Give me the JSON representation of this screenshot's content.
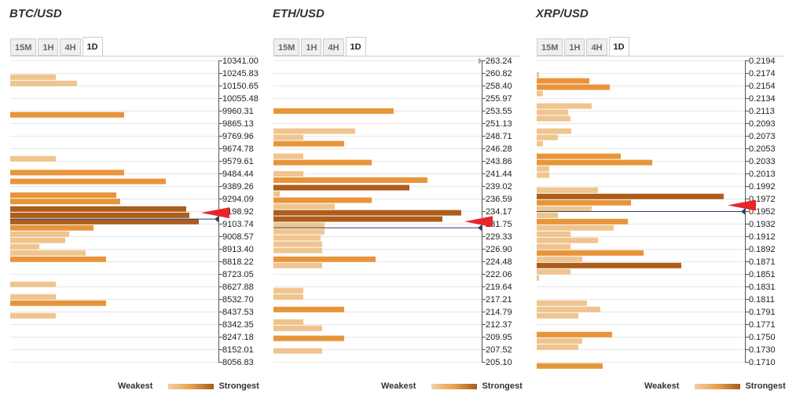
{
  "colors": {
    "light": "#f0c48e",
    "mid": "#e8953a",
    "dark": "#ad5d1b",
    "arrow": "#e8262a",
    "line": "#2c3e6b",
    "tri": "#a8a8c0"
  },
  "legend": {
    "weak": "Weakest",
    "strong": "Strongest"
  },
  "panels": [
    {
      "title": "BTC/USD",
      "tabs": [
        "15M",
        "1H",
        "4H",
        "1D"
      ],
      "active_tab": "1D",
      "chart_data": {
        "type": "bar",
        "orientation": "horizontal",
        "y_ticks": [
          "10341.00",
          "10245.83",
          "10150.65",
          "10055.48",
          "9960.31",
          "9865.13",
          "9769.96",
          "9674.78",
          "9579.61",
          "9484.44",
          "9389.26",
          "9294.09",
          "9198.92",
          "9103.74",
          "9008.57",
          "8913.40",
          "8818.22",
          "8723.05",
          "8627.88",
          "8532.70",
          "8437.53",
          "8342.35",
          "8247.18",
          "8152.01",
          "8056.83"
        ],
        "current_price_level": 12.6,
        "bars": [
          {
            "level": 1.3,
            "value": 58,
            "strength": "light"
          },
          {
            "level": 1.8,
            "value": 85,
            "strength": "light"
          },
          {
            "level": 4.3,
            "value": 145,
            "strength": "mid"
          },
          {
            "level": 7.8,
            "value": 58,
            "strength": "light"
          },
          {
            "level": 8.9,
            "value": 145,
            "strength": "mid"
          },
          {
            "level": 9.6,
            "value": 198,
            "strength": "mid"
          },
          {
            "level": 10.7,
            "value": 135,
            "strength": "mid"
          },
          {
            "level": 11.2,
            "value": 140,
            "strength": "mid"
          },
          {
            "level": 11.8,
            "value": 224,
            "strength": "dark"
          },
          {
            "level": 12.3,
            "value": 228,
            "strength": "dark"
          },
          {
            "level": 12.8,
            "value": 240,
            "strength": "dark"
          },
          {
            "level": 13.3,
            "value": 106,
            "strength": "mid"
          },
          {
            "level": 13.8,
            "value": 75,
            "strength": "light"
          },
          {
            "level": 14.3,
            "value": 70,
            "strength": "light"
          },
          {
            "level": 14.8,
            "value": 37,
            "strength": "light"
          },
          {
            "level": 15.3,
            "value": 96,
            "strength": "light"
          },
          {
            "level": 15.8,
            "value": 122,
            "strength": "mid"
          },
          {
            "level": 17.8,
            "value": 58,
            "strength": "light"
          },
          {
            "level": 18.8,
            "value": 58,
            "strength": "light"
          },
          {
            "level": 19.3,
            "value": 122,
            "strength": "mid"
          },
          {
            "level": 20.3,
            "value": 58,
            "strength": "light"
          }
        ]
      }
    },
    {
      "title": "ETH/USD",
      "tabs": [
        "15M",
        "1H",
        "4H",
        "1D"
      ],
      "active_tab": "1D",
      "chart_data": {
        "type": "bar",
        "orientation": "horizontal",
        "y_ticks": [
          "263.24",
          "260.82",
          "258.40",
          "255.97",
          "253.55",
          "251.13",
          "248.71",
          "246.28",
          "243.86",
          "241.44",
          "239.02",
          "236.59",
          "234.17",
          "231.75",
          "229.33",
          "226.90",
          "224.48",
          "222.06",
          "219.64",
          "217.21",
          "214.79",
          "212.37",
          "209.95",
          "207.52",
          "205.10"
        ],
        "current_price_level": 13.3,
        "top_marker": true,
        "bars": [
          {
            "level": 4.0,
            "value": 153,
            "strength": "mid"
          },
          {
            "level": 5.6,
            "value": 104,
            "strength": "light"
          },
          {
            "level": 6.1,
            "value": 38,
            "strength": "light"
          },
          {
            "level": 6.6,
            "value": 90,
            "strength": "mid"
          },
          {
            "level": 7.6,
            "value": 38,
            "strength": "light"
          },
          {
            "level": 8.1,
            "value": 125,
            "strength": "mid"
          },
          {
            "level": 9.0,
            "value": 38,
            "strength": "light"
          },
          {
            "level": 9.5,
            "value": 196,
            "strength": "mid"
          },
          {
            "level": 10.1,
            "value": 173,
            "strength": "dark"
          },
          {
            "level": 10.6,
            "value": 8,
            "strength": "light"
          },
          {
            "level": 11.1,
            "value": 125,
            "strength": "mid"
          },
          {
            "level": 11.6,
            "value": 78,
            "strength": "light"
          },
          {
            "level": 12.1,
            "value": 239,
            "strength": "dark"
          },
          {
            "level": 12.6,
            "value": 215,
            "strength": "dark"
          },
          {
            "level": 13.1,
            "value": 65,
            "strength": "light"
          },
          {
            "level": 13.6,
            "value": 65,
            "strength": "light"
          },
          {
            "level": 14.1,
            "value": 60,
            "strength": "light"
          },
          {
            "level": 14.6,
            "value": 62,
            "strength": "light"
          },
          {
            "level": 15.1,
            "value": 62,
            "strength": "light"
          },
          {
            "level": 15.8,
            "value": 130,
            "strength": "mid"
          },
          {
            "level": 16.3,
            "value": 62,
            "strength": "light"
          },
          {
            "level": 18.3,
            "value": 38,
            "strength": "light"
          },
          {
            "level": 18.8,
            "value": 38,
            "strength": "light"
          },
          {
            "level": 19.8,
            "value": 90,
            "strength": "mid"
          },
          {
            "level": 20.8,
            "value": 38,
            "strength": "light"
          },
          {
            "level": 21.3,
            "value": 62,
            "strength": "light"
          },
          {
            "level": 22.1,
            "value": 90,
            "strength": "mid"
          },
          {
            "level": 23.1,
            "value": 62,
            "strength": "light"
          }
        ]
      }
    },
    {
      "title": "XRP/USD",
      "tabs": [
        "15M",
        "1H",
        "4H",
        "1D"
      ],
      "active_tab": "1D",
      "chart_data": {
        "type": "bar",
        "orientation": "horizontal",
        "y_ticks": [
          "0.2194",
          "0.2174",
          "0.2154",
          "0.2134",
          "0.2113",
          "0.2093",
          "0.2073",
          "0.2053",
          "0.2033",
          "0.2013",
          "0.1992",
          "0.1972",
          "0.1952",
          "0.1932",
          "0.1912",
          "0.1892",
          "0.1871",
          "0.1851",
          "0.1831",
          "0.1811",
          "0.1791",
          "0.1771",
          "0.1750",
          "0.1730",
          "0.1710"
        ],
        "current_price_level": 12.0,
        "bars": [
          {
            "level": 1.1,
            "value": 3,
            "strength": "light"
          },
          {
            "level": 1.6,
            "value": 67,
            "strength": "mid"
          },
          {
            "level": 2.1,
            "value": 93,
            "strength": "mid"
          },
          {
            "level": 2.6,
            "value": 8,
            "strength": "light"
          },
          {
            "level": 3.6,
            "value": 70,
            "strength": "light"
          },
          {
            "level": 4.1,
            "value": 40,
            "strength": "light"
          },
          {
            "level": 4.6,
            "value": 43,
            "strength": "light"
          },
          {
            "level": 5.6,
            "value": 44,
            "strength": "light"
          },
          {
            "level": 6.1,
            "value": 27,
            "strength": "light"
          },
          {
            "level": 6.6,
            "value": 8,
            "strength": "light"
          },
          {
            "level": 7.6,
            "value": 107,
            "strength": "mid"
          },
          {
            "level": 8.1,
            "value": 147,
            "strength": "mid"
          },
          {
            "level": 8.6,
            "value": 16,
            "strength": "light"
          },
          {
            "level": 9.1,
            "value": 16,
            "strength": "light"
          },
          {
            "level": 10.3,
            "value": 78,
            "strength": "light"
          },
          {
            "level": 10.8,
            "value": 238,
            "strength": "dark"
          },
          {
            "level": 11.3,
            "value": 120,
            "strength": "mid"
          },
          {
            "level": 11.8,
            "value": 70,
            "strength": "light"
          },
          {
            "level": 12.3,
            "value": 27,
            "strength": "light"
          },
          {
            "level": 12.8,
            "value": 116,
            "strength": "mid"
          },
          {
            "level": 13.3,
            "value": 98,
            "strength": "light"
          },
          {
            "level": 13.8,
            "value": 43,
            "strength": "light"
          },
          {
            "level": 14.3,
            "value": 78,
            "strength": "light"
          },
          {
            "level": 14.8,
            "value": 43,
            "strength": "light"
          },
          {
            "level": 15.3,
            "value": 136,
            "strength": "mid"
          },
          {
            "level": 15.8,
            "value": 58,
            "strength": "light"
          },
          {
            "level": 16.3,
            "value": 184,
            "strength": "dark"
          },
          {
            "level": 16.8,
            "value": 43,
            "strength": "light"
          },
          {
            "level": 17.3,
            "value": 3,
            "strength": "light"
          },
          {
            "level": 19.3,
            "value": 64,
            "strength": "light"
          },
          {
            "level": 19.8,
            "value": 81,
            "strength": "light"
          },
          {
            "level": 20.3,
            "value": 53,
            "strength": "light"
          },
          {
            "level": 21.8,
            "value": 96,
            "strength": "mid"
          },
          {
            "level": 22.3,
            "value": 58,
            "strength": "light"
          },
          {
            "level": 22.8,
            "value": 53,
            "strength": "light"
          },
          {
            "level": 24.3,
            "value": 84,
            "strength": "mid"
          }
        ]
      }
    }
  ]
}
